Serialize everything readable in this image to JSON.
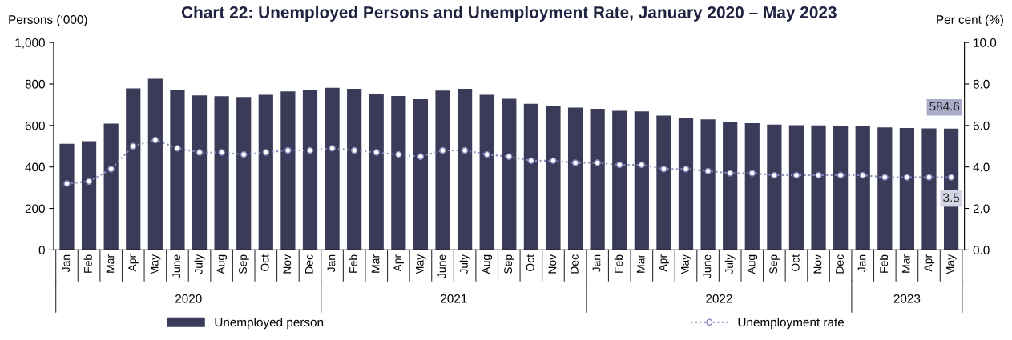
{
  "chart_data": {
    "type": "bar",
    "title": "Chart 22: Unemployed Persons and Unemployment Rate, January 2020 – May 2023",
    "ylabel": "Persons (‘000)",
    "y2label": "Per cent (%)",
    "categories": [
      "Jan",
      "Feb",
      "Mar",
      "Apr",
      "May",
      "June",
      "July",
      "Aug",
      "Sep",
      "Oct",
      "Nov",
      "Dec",
      "Jan",
      "Feb",
      "Mar",
      "Apr",
      "May",
      "June",
      "July",
      "Aug",
      "Sep",
      "Oct",
      "Nov",
      "Dec",
      "Jan",
      "Feb",
      "Mar",
      "Apr",
      "May",
      "June",
      "July",
      "Aug",
      "Sep",
      "Oct",
      "Nov",
      "Dec",
      "Jan",
      "Feb",
      "Mar",
      "Apr",
      "May"
    ],
    "annotations": [
      "2020",
      "2021",
      "2022",
      "2023"
    ],
    "series": [
      {
        "name": "Unemployed person",
        "color": "#393b58",
        "values": [
          512,
          524,
          609,
          779,
          825,
          773,
          745,
          741,
          737,
          748,
          764,
          772,
          782,
          777,
          753,
          742,
          727,
          768,
          777,
          748,
          729,
          704,
          693,
          686,
          680,
          671,
          668,
          648,
          636,
          629,
          619,
          611,
          604,
          601,
          600,
          599,
          595,
          591,
          588,
          586,
          584.6
        ],
        "value_labels": [
          null,
          null,
          null,
          null,
          null,
          null,
          null,
          null,
          null,
          null,
          null,
          null,
          null,
          null,
          null,
          null,
          null,
          null,
          null,
          null,
          null,
          null,
          null,
          null,
          null,
          null,
          null,
          null,
          null,
          null,
          null,
          null,
          null,
          null,
          null,
          null,
          null,
          null,
          null,
          null,
          "584.6"
        ]
      },
      {
        "name": "Unemployment rate",
        "type": "line",
        "axis": "y2",
        "color": "#8c8cbf",
        "marker": "circle",
        "line_style": "dotted",
        "values": [
          3.2,
          3.3,
          3.9,
          5.0,
          5.3,
          4.9,
          4.7,
          4.7,
          4.6,
          4.7,
          4.8,
          4.8,
          4.9,
          4.8,
          4.7,
          4.6,
          4.5,
          4.8,
          4.8,
          4.6,
          4.5,
          4.3,
          4.3,
          4.2,
          4.2,
          4.1,
          4.1,
          3.9,
          3.9,
          3.8,
          3.7,
          3.7,
          3.6,
          3.6,
          3.6,
          3.6,
          3.6,
          3.5,
          3.5,
          3.5,
          3.5
        ],
        "value_labels": [
          null,
          null,
          null,
          null,
          null,
          null,
          null,
          null,
          null,
          null,
          null,
          null,
          null,
          null,
          null,
          null,
          null,
          null,
          null,
          null,
          null,
          null,
          null,
          null,
          null,
          null,
          null,
          null,
          null,
          null,
          null,
          null,
          null,
          null,
          null,
          null,
          null,
          null,
          null,
          null,
          "3.5"
        ]
      }
    ],
    "ylim": [
      0,
      1000
    ],
    "yticks": [
      0,
      200,
      400,
      600,
      800,
      {
        "value": 1000,
        "label": "1,000"
      }
    ],
    "y2lim": [
      0,
      10
    ],
    "y2ticks": [
      {
        "value": 0,
        "label": "0.0"
      },
      {
        "value": 2,
        "label": "2.0"
      },
      {
        "value": 4,
        "label": "4.0"
      },
      {
        "value": 6,
        "label": "6.0"
      },
      {
        "value": 8,
        "label": "8.0"
      },
      {
        "value": 10,
        "label": "10.0"
      }
    ],
    "grid": false,
    "legend": "bottom"
  }
}
